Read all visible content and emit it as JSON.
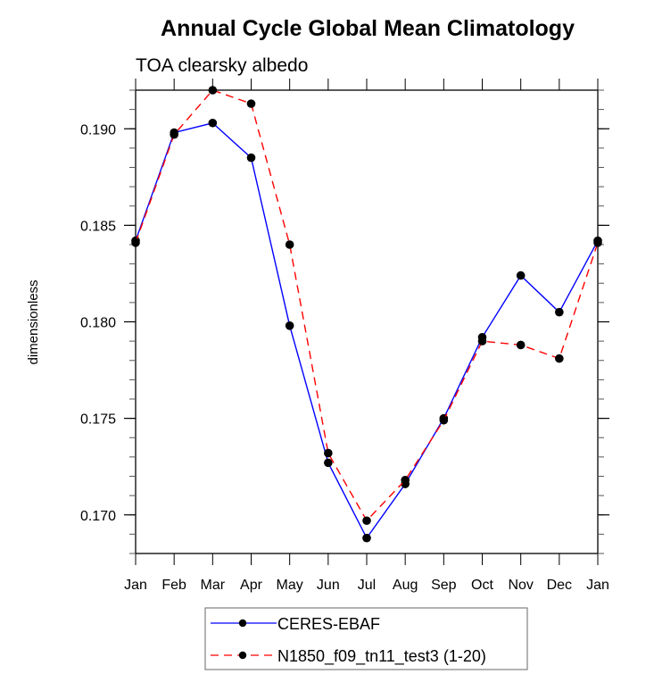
{
  "chart_data": {
    "type": "line",
    "title": "Annual Cycle Global Mean Climatology",
    "subtitle": "TOA clearsky albedo",
    "xlabel": "",
    "ylabel": "dimensionless",
    "categories": [
      "Jan",
      "Feb",
      "Mar",
      "Apr",
      "May",
      "Jun",
      "Jul",
      "Aug",
      "Sep",
      "Oct",
      "Nov",
      "Dec",
      "Jan"
    ],
    "ylim": [
      0.168,
      0.192
    ],
    "yticks": [
      0.17,
      0.175,
      0.18,
      0.185,
      0.19
    ],
    "ytick_labels": [
      "0.170",
      "0.175",
      "0.180",
      "0.185",
      "0.190"
    ],
    "yminor_step": 0.001,
    "grid": false,
    "legend_position": "bottom",
    "series": [
      {
        "name": "CERES-EBAF",
        "color": "#0000ff",
        "style": "solid",
        "marker": "filled-circle",
        "values": [
          0.1842,
          0.1898,
          0.1903,
          0.1885,
          0.1798,
          0.1727,
          0.1688,
          0.1716,
          0.175,
          0.1792,
          0.1824,
          0.1805,
          0.1842
        ]
      },
      {
        "name": "N1850_f09_tn11_test3 (1-20)",
        "color": "#ff0000",
        "style": "dashed",
        "marker": "filled-circle",
        "values": [
          0.1841,
          0.1897,
          0.192,
          0.1913,
          0.184,
          0.1732,
          0.1697,
          0.1718,
          0.1749,
          0.179,
          0.1788,
          0.1781,
          0.1841
        ]
      }
    ]
  }
}
